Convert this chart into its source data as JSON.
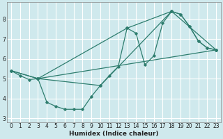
{
  "background_color": "#cfe9ed",
  "grid_color": "#ffffff",
  "line_color": "#2e7d6e",
  "xlabel": "Humidex (Indice chaleur)",
  "xlim": [
    -0.5,
    23.5
  ],
  "ylim": [
    2.8,
    8.85
  ],
  "yticks": [
    3,
    4,
    5,
    6,
    7,
    8
  ],
  "xticks": [
    0,
    1,
    2,
    3,
    4,
    5,
    6,
    7,
    8,
    9,
    10,
    11,
    12,
    13,
    14,
    15,
    16,
    17,
    18,
    19,
    20,
    21,
    22,
    23
  ],
  "line1_x": [
    0,
    1,
    2,
    3,
    4,
    5,
    6,
    7,
    8,
    9,
    10,
    11,
    12,
    13,
    14,
    15,
    16,
    17,
    18,
    19,
    20,
    21,
    22,
    23
  ],
  "line1_y": [
    5.4,
    5.15,
    4.95,
    5.0,
    3.8,
    3.6,
    3.45,
    3.45,
    3.45,
    4.1,
    4.65,
    5.15,
    5.6,
    7.55,
    7.3,
    5.7,
    6.15,
    7.8,
    8.4,
    8.25,
    7.65,
    6.9,
    6.55,
    6.45
  ],
  "line2_x": [
    3,
    23
  ],
  "line2_y": [
    5.0,
    6.45
  ],
  "line3_x": [
    0,
    3,
    10,
    18,
    23
  ],
  "line3_y": [
    5.4,
    5.0,
    4.65,
    8.4,
    6.45
  ],
  "line4_x": [
    0,
    3,
    13,
    18,
    19,
    20,
    21,
    22,
    23
  ],
  "line4_y": [
    5.4,
    5.0,
    7.55,
    8.4,
    8.25,
    7.65,
    6.9,
    6.55,
    6.45
  ]
}
